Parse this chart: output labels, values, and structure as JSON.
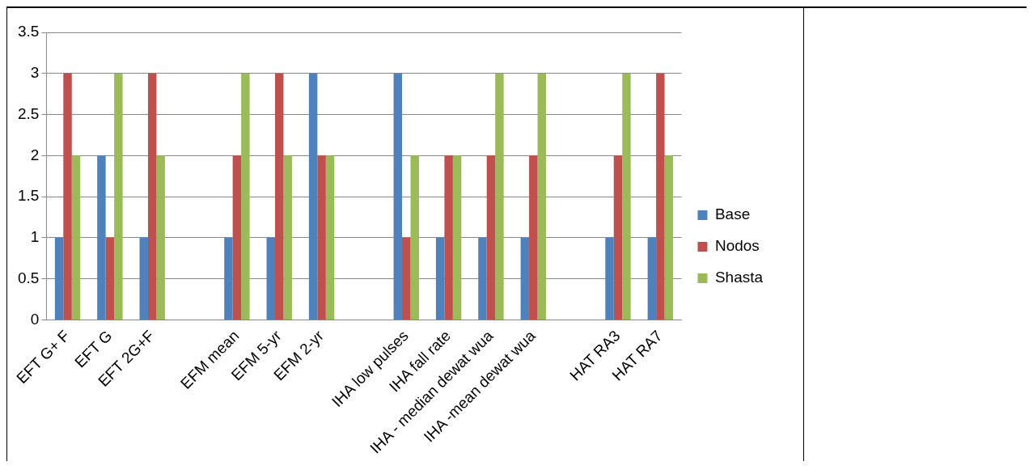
{
  "chart_data": {
    "type": "bar",
    "categories": [
      "EFT G+ F",
      "EFT G",
      "EFT 2G+F",
      null,
      "EFM mean",
      "EFM 5-yr",
      "EFM 2-yr",
      null,
      "IHA low pulses",
      "IHA fall rate",
      "IHA - median dewat wua",
      "IHA -mean dewat wua",
      null,
      "HAT RA3",
      "HAT RA7"
    ],
    "series": [
      {
        "name": "Base",
        "color": "#4f81bd",
        "values": [
          1,
          2,
          1,
          null,
          1,
          1,
          3,
          null,
          3,
          1,
          1,
          1,
          null,
          1,
          1
        ]
      },
      {
        "name": "Nodos",
        "color": "#c0504d",
        "values": [
          3,
          1,
          3,
          null,
          2,
          3,
          2,
          null,
          1,
          2,
          2,
          2,
          null,
          2,
          3
        ]
      },
      {
        "name": "Shasta",
        "color": "#9bbb59",
        "values": [
          2,
          3,
          2,
          null,
          3,
          2,
          2,
          null,
          2,
          2,
          3,
          3,
          null,
          3,
          2
        ]
      }
    ],
    "ylim": [
      0,
      3.5
    ],
    "yticks": [
      0,
      0.5,
      1,
      1.5,
      2,
      2.5,
      3,
      3.5
    ],
    "grid": "y",
    "legend": "right"
  }
}
